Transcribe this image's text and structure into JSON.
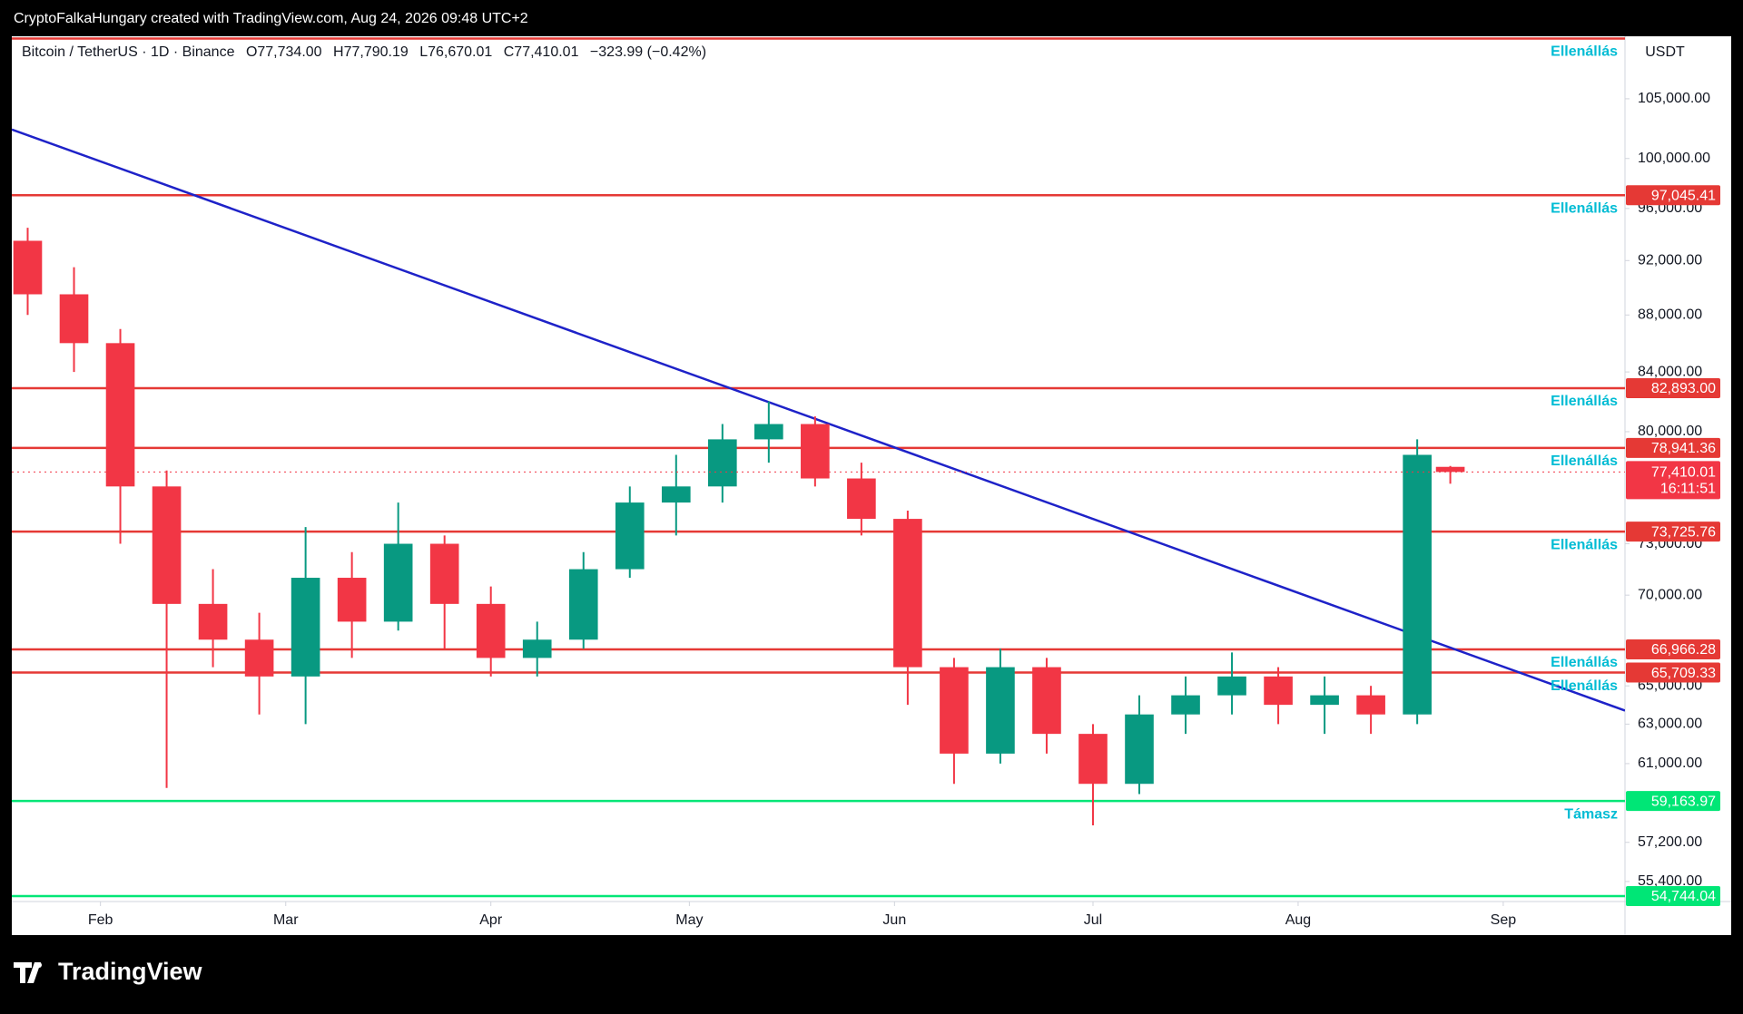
{
  "chart_data": {
    "type": "candlestick",
    "header": "CryptoFalkaHungary created with TradingView.com, Aug 24, 2026 09:48 UTC+2",
    "symbol": "Bitcoin / TetherUS · 1D · Binance",
    "ohlc": [
      "O77,734.00",
      "H77,790.19",
      "L76,670.01",
      "C77,410.01"
    ],
    "change": "−323.99 (−0.42%)",
    "currency": "USDT",
    "brand": "TradingView",
    "log_scale": true,
    "grid": false,
    "up_color": "#089981",
    "down_color": "#f23645",
    "xlim": [
      18.6,
      262.4
    ],
    "xticks": [
      {
        "value": 32,
        "label": "Feb"
      },
      {
        "value": 60,
        "label": "Mar"
      },
      {
        "value": 91,
        "label": "Apr"
      },
      {
        "value": 121,
        "label": "May"
      },
      {
        "value": 152,
        "label": "Jun"
      },
      {
        "value": 182,
        "label": "Jul"
      },
      {
        "value": 213,
        "label": "Aug"
      },
      {
        "value": 244,
        "label": "Sep"
      }
    ],
    "ylim": [
      54500,
      110500
    ],
    "yticks": [
      {
        "value": 55400,
        "label": "55,400.00"
      },
      {
        "value": 57200,
        "label": "57,200.00"
      },
      {
        "value": 61000,
        "label": "61,000.00"
      },
      {
        "value": 63000,
        "label": "63,000.00"
      },
      {
        "value": 65000,
        "label": "65,000.00"
      },
      {
        "value": 70000,
        "label": "70,000.00"
      },
      {
        "value": 73000,
        "label": "73,000.00"
      },
      {
        "value": 80000,
        "label": "80,000.00"
      },
      {
        "value": 84000,
        "label": "84,000.00"
      },
      {
        "value": 88000,
        "label": "88,000.00"
      },
      {
        "value": 92000,
        "label": "92,000.00"
      },
      {
        "value": 96000,
        "label": "96,000.00"
      },
      {
        "value": 100000,
        "label": "100,000.00"
      },
      {
        "value": 105000,
        "label": "105,000.00"
      }
    ],
    "x": [
      21,
      28,
      35,
      42,
      49,
      56,
      63,
      70,
      77,
      84,
      91,
      98,
      105,
      112,
      119,
      126,
      133,
      140,
      147,
      154,
      161,
      168,
      175,
      182,
      189,
      196,
      203,
      210,
      217,
      224,
      231,
      236
    ],
    "open": [
      93500,
      89500,
      86000,
      76500,
      69500,
      67500,
      65500,
      71000,
      68500,
      73000,
      69500,
      66500,
      67500,
      71500,
      75500,
      76500,
      79500,
      80500,
      77000,
      74500,
      66000,
      61500,
      66000,
      62500,
      60000,
      63500,
      64500,
      65500,
      64000,
      64500,
      63500,
      77734
    ],
    "high": [
      94500,
      91500,
      87000,
      77500,
      71500,
      69000,
      74000,
      72500,
      75500,
      73500,
      70500,
      68500,
      72500,
      76500,
      78500,
      80500,
      82000,
      81000,
      78000,
      75000,
      66500,
      67000,
      66500,
      63000,
      64500,
      65500,
      66800,
      66000,
      65500,
      65000,
      79500,
      77790.19
    ],
    "low": [
      88000,
      84000,
      73000,
      59800,
      66000,
      63500,
      63000,
      66500,
      68000,
      67000,
      65500,
      65500,
      67000,
      71000,
      73500,
      75500,
      78000,
      76500,
      73500,
      64000,
      60000,
      61000,
      61500,
      58000,
      59500,
      62500,
      63500,
      63000,
      62500,
      62500,
      63000,
      76670.01
    ],
    "close": [
      89500,
      86000,
      76500,
      69500,
      67500,
      65500,
      71000,
      68500,
      73000,
      69500,
      66500,
      67500,
      71500,
      75500,
      76500,
      79500,
      80500,
      77000,
      74500,
      66000,
      61500,
      66000,
      62500,
      60000,
      63500,
      64500,
      65500,
      64000,
      64500,
      63500,
      78500,
      77410.01
    ],
    "trendline": {
      "x": [
        18.6,
        262.4
      ],
      "values": [
        102400,
        63700
      ],
      "color": "#1e22c8"
    },
    "levels": [
      {
        "value": 110300,
        "label": "Ellenállás",
        "color": "#e53935"
      },
      {
        "value": 97045.41,
        "value_label": "97,045.41",
        "label": "Ellenállás",
        "color": "#e53935"
      },
      {
        "value": 82893,
        "value_label": "82,893.00",
        "label": "Ellenállás",
        "color": "#e53935"
      },
      {
        "value": 78941.36,
        "value_label": "78,941.36",
        "label": "Ellenállás",
        "color": "#e53935"
      },
      {
        "value": 73725.76,
        "value_label": "73,725.76",
        "label": "Ellenállás",
        "color": "#e53935"
      },
      {
        "value": 66966.28,
        "value_label": "66,966.28",
        "label": "Ellenállás",
        "color": "#e53935"
      },
      {
        "value": 65709.33,
        "value_label": "65,709.33",
        "label": "Ellenállás",
        "color": "#e53935"
      },
      {
        "value": 59163.97,
        "value_label": "59,163.97",
        "label": "Támasz",
        "color": "#00e676"
      },
      {
        "value": 54744.04,
        "value_label": "54,744.04",
        "color": "#00e676"
      }
    ],
    "last_price": {
      "value": 77410.01,
      "value_label": "77,410.01",
      "countdown": "16:11:51",
      "color": "#f23645"
    }
  }
}
